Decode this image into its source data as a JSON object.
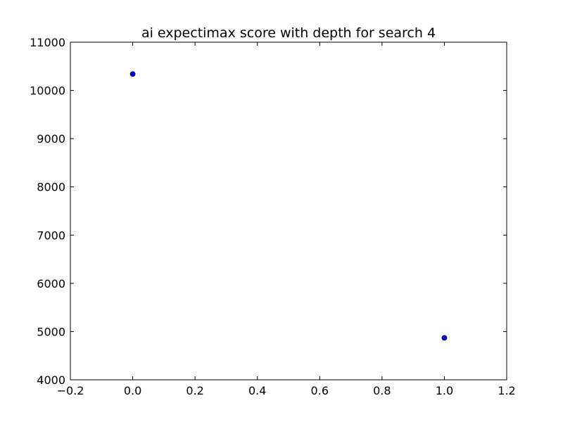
{
  "chart_data": {
    "type": "scatter",
    "title": "ai expectimax score with depth for search 4",
    "xlabel": "",
    "ylabel": "",
    "xlim": [
      -0.2,
      1.2
    ],
    "ylim": [
      4000,
      11000
    ],
    "xticks": [
      -0.2,
      0.0,
      0.2,
      0.4,
      0.6,
      0.8,
      1.0,
      1.2
    ],
    "xtick_labels": [
      "−0.2",
      "0.0",
      "0.2",
      "0.4",
      "0.6",
      "0.8",
      "1.0",
      "1.2"
    ],
    "yticks": [
      4000,
      5000,
      6000,
      7000,
      8000,
      9000,
      10000,
      11000
    ],
    "ytick_labels": [
      "4000",
      "5000",
      "6000",
      "7000",
      "8000",
      "9000",
      "10000",
      "11000"
    ],
    "grid": false,
    "series": [
      {
        "x": [
          0.0,
          1.0
        ],
        "y": [
          10340,
          4870
        ]
      }
    ],
    "colors": {
      "marker_fill": "#0000ff",
      "marker_edge": "#000000",
      "axes": "#000000"
    }
  }
}
